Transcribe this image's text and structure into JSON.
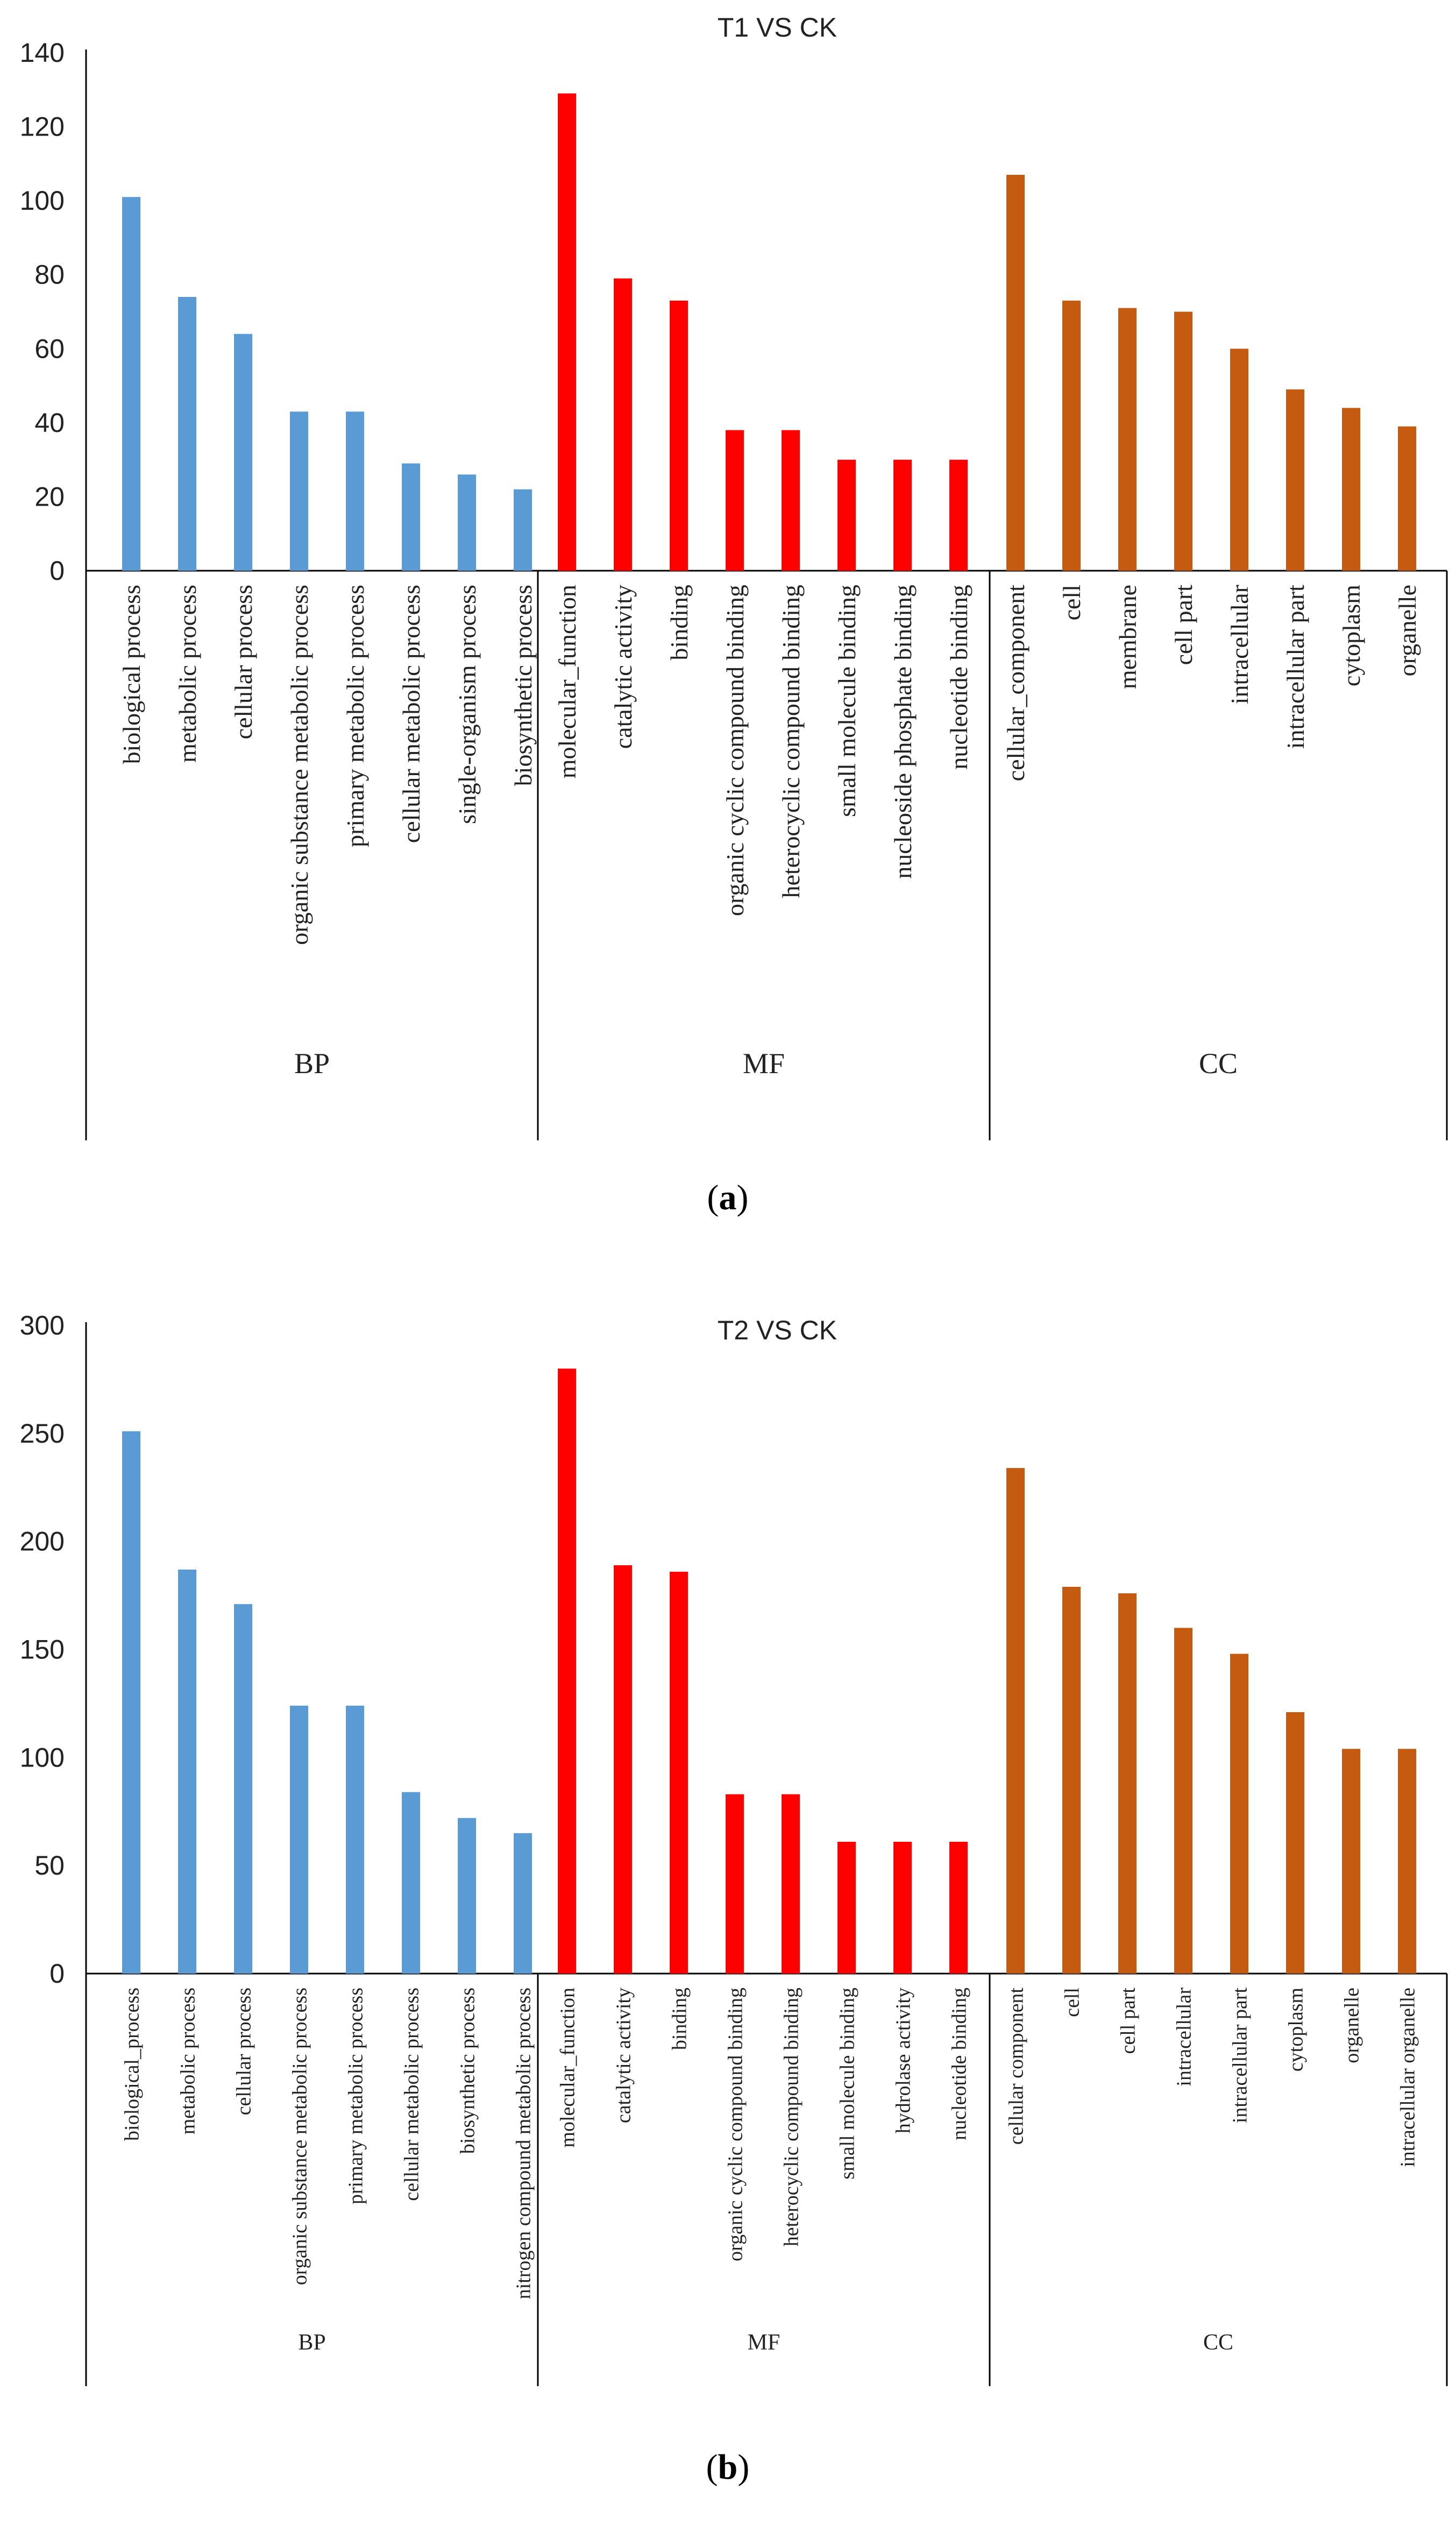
{
  "chart_data": [
    {
      "type": "bar",
      "panel_label": "a",
      "title": "T1 VS CK",
      "xlabel": "",
      "ylabel": "",
      "ylim": [
        0,
        140
      ],
      "yticks": [
        0,
        20,
        40,
        60,
        80,
        100,
        120,
        140
      ],
      "grid": false,
      "groups": [
        {
          "name": "BP",
          "color": "#5B9BD5",
          "categories": [
            "biological process",
            "metabolic process",
            "cellular process",
            "organic substance metabolic process",
            "primary metabolic process",
            "cellular metabolic process",
            "single-organism process",
            "biosynthetic process"
          ],
          "values": [
            101,
            74,
            64,
            43,
            43,
            29,
            26,
            22
          ]
        },
        {
          "name": "MF",
          "color": "#FF0000",
          "categories": [
            "molecular_function",
            "catalytic activity",
            "binding",
            "organic cyclic compound binding",
            "heterocyclic compound binding",
            "small molecule binding",
            "nucleoside phosphate binding",
            "nucleotide binding"
          ],
          "values": [
            129,
            79,
            73,
            38,
            38,
            30,
            30,
            30
          ]
        },
        {
          "name": "CC",
          "color": "#C55A11",
          "categories": [
            "cellular_component",
            "cell",
            "membrane",
            "cell part",
            "intracellular",
            "intracellular part",
            "cytoplasm",
            "organelle"
          ],
          "values": [
            107,
            73,
            71,
            70,
            60,
            49,
            44,
            39
          ]
        }
      ]
    },
    {
      "type": "bar",
      "panel_label": "b",
      "title": "T2 VS CK",
      "xlabel": "",
      "ylabel": "",
      "ylim": [
        0,
        300
      ],
      "yticks": [
        0,
        50,
        100,
        150,
        200,
        250,
        300
      ],
      "grid": false,
      "groups": [
        {
          "name": "BP",
          "color": "#5B9BD5",
          "categories": [
            "biological_process",
            "metabolic process",
            "cellular process",
            "organic substance metabolic process",
            "primary metabolic process",
            "cellular metabolic process",
            "biosynthetic process",
            "nitrogen compound metabolic process"
          ],
          "values": [
            251,
            187,
            171,
            124,
            124,
            84,
            72,
            65
          ]
        },
        {
          "name": "MF",
          "color": "#FF0000",
          "categories": [
            "molecular_function",
            "catalytic activity",
            "binding",
            "organic cyclic compound binding",
            "heterocyclic compound binding",
            "small molecule binding",
            "hydrolase activity",
            "nucleotide binding"
          ],
          "values": [
            280,
            189,
            186,
            83,
            83,
            61,
            61,
            61
          ]
        },
        {
          "name": "CC",
          "color": "#C55A11",
          "categories": [
            "cellular  component",
            "cell",
            "cell part",
            "intracellular",
            "intracellular part",
            "cytoplasm",
            "organelle",
            "intracellular organelle"
          ],
          "values": [
            234,
            179,
            176,
            160,
            148,
            121,
            104,
            104
          ]
        }
      ]
    }
  ]
}
